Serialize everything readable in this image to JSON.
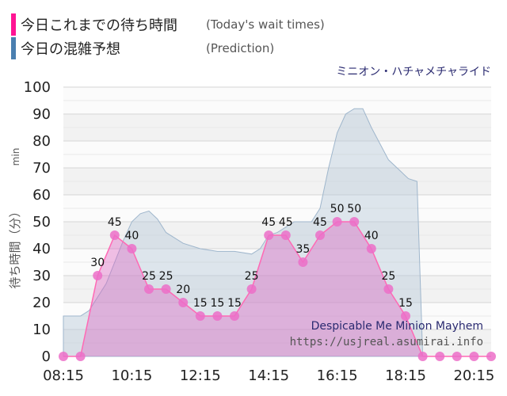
{
  "legend": {
    "actual_label": "今日これまでの待ち時間",
    "actual_sub": "(Today's wait times)",
    "actual_color": "#ff1493",
    "prediction_label": "今日の混雑予想",
    "prediction_sub": "(Prediction)",
    "prediction_color": "#4a7fb0"
  },
  "attraction_jp": "ミニオン・ハチャメチャライド",
  "attraction_en": "Despicable Me Minion Mayhem",
  "site": "https://usjreal.asumirai.info",
  "chart_data": {
    "type": "area",
    "ylabel_jp": "待ち時間（分）",
    "ylabel_unit": "min",
    "ylim": [
      0,
      100
    ],
    "yticks": [
      0,
      10,
      20,
      30,
      40,
      50,
      60,
      70,
      80,
      90,
      100
    ],
    "xlim": [
      "08:15",
      "20:45"
    ],
    "xtick_labels": [
      "08:15",
      "10:15",
      "12:15",
      "14:15",
      "16:15",
      "18:15",
      "20:15"
    ],
    "grid": true,
    "series": [
      {
        "name": "今日の混雑予想",
        "style": "area",
        "color": "#b8c9d9",
        "x": [
          "08:15",
          "08:45",
          "09:00",
          "09:30",
          "09:45",
          "10:00",
          "10:15",
          "10:30",
          "10:45",
          "11:00",
          "11:15",
          "11:45",
          "12:15",
          "12:45",
          "13:15",
          "13:45",
          "14:00",
          "14:15",
          "14:30",
          "14:45",
          "15:00",
          "15:15",
          "15:30",
          "15:45",
          "16:00",
          "16:15",
          "16:30",
          "16:45",
          "17:00",
          "17:15",
          "17:45",
          "18:15",
          "18:20",
          "18:35",
          "18:45",
          "20:45"
        ],
        "values": [
          15,
          15,
          17,
          27,
          35,
          43,
          50,
          53,
          54,
          51,
          46,
          42,
          40,
          39,
          39,
          38,
          40,
          45,
          46,
          48,
          50,
          50,
          50,
          55,
          70,
          83,
          90,
          92,
          92,
          85,
          73,
          67,
          66,
          65,
          0,
          0
        ]
      },
      {
        "name": "今日これまでの待ち時間",
        "style": "line-area",
        "color": "#ff1493",
        "x": [
          "08:15",
          "08:45",
          "09:15",
          "09:45",
          "10:15",
          "10:45",
          "11:15",
          "11:45",
          "12:15",
          "12:45",
          "13:15",
          "13:45",
          "14:15",
          "14:45",
          "15:15",
          "15:45",
          "16:15",
          "16:45",
          "17:15",
          "17:45",
          "18:15",
          "18:45",
          "19:15",
          "19:45",
          "20:15",
          "20:45"
        ],
        "values": [
          0,
          0,
          30,
          45,
          40,
          25,
          25,
          20,
          15,
          15,
          15,
          25,
          45,
          45,
          35,
          45,
          50,
          50,
          40,
          25,
          15,
          0,
          0,
          0,
          0,
          0
        ],
        "data_labels": [
          "",
          "",
          "30",
          "45",
          "40",
          "25",
          "25",
          "20",
          "15",
          "15",
          "15",
          "25",
          "45",
          "45",
          "35",
          "45",
          "50",
          "50",
          "40",
          "25",
          "15",
          "",
          "",
          "",
          "",
          ""
        ]
      }
    ]
  }
}
